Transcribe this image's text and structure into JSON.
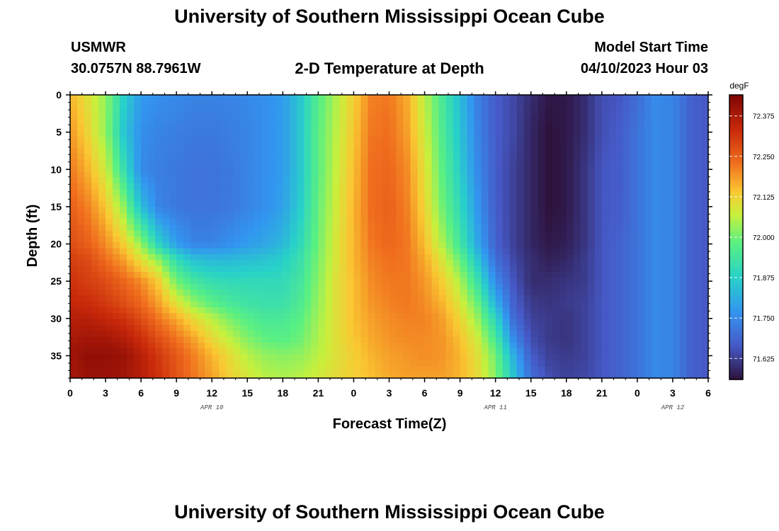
{
  "header": {
    "title": "University of Southern Mississippi Ocean Cube",
    "station": "USMWR",
    "coords": "30.0757N  88.7961W",
    "plot_title": "2-D Temperature at Depth",
    "model_start_label": "Model Start Time",
    "model_start_value": "04/10/2023 Hour 03"
  },
  "footer": {
    "title": "University of Southern Mississippi Ocean Cube"
  },
  "chart_data": {
    "type": "heatmap",
    "title": "2-D Temperature at Depth",
    "xlabel": "Forecast Time(Z)",
    "ylabel": "Depth (ft)",
    "units": "degF",
    "x_range_hours": [
      0,
      54
    ],
    "x_tick_hours": [
      0,
      3,
      6,
      9,
      12,
      15,
      18,
      21,
      24,
      27,
      30,
      33,
      36,
      39,
      42,
      45,
      48,
      51,
      54
    ],
    "x_tick_labels": [
      "0",
      "3",
      "6",
      "9",
      "12",
      "15",
      "18",
      "21",
      "0",
      "3",
      "6",
      "9",
      "12",
      "15",
      "18",
      "21",
      "0",
      "3",
      "6"
    ],
    "date_labels": [
      {
        "text": "APR 10",
        "hour": 12
      },
      {
        "text": "APR 11",
        "hour": 36
      },
      {
        "text": "APR 12",
        "hour": 51
      }
    ],
    "y_range_ft": [
      0,
      38
    ],
    "y_ticks": [
      0,
      5,
      10,
      15,
      20,
      25,
      30,
      35
    ],
    "y_tick_labels": [
      "0",
      "5",
      "10",
      "15",
      "20",
      "25",
      "30",
      "35"
    ],
    "colorbar": {
      "min": 71.56,
      "max": 72.44,
      "ticks": [
        71.625,
        71.75,
        71.875,
        72.0,
        72.125,
        72.25,
        72.375
      ],
      "tick_labels": [
        "71.625",
        "71.750",
        "71.875",
        "72.000",
        "72.125",
        "72.250",
        "72.375"
      ]
    },
    "grid": {
      "x_hours": [
        0,
        1.5,
        3,
        4.5,
        6,
        7.5,
        9,
        10.5,
        12,
        13.5,
        15,
        16.5,
        18,
        19.5,
        21,
        22.5,
        24,
        25.5,
        27,
        28.5,
        30,
        31.5,
        33,
        34.5,
        36,
        37.5,
        39,
        40.5,
        42,
        43.5,
        45,
        46.5,
        48,
        49.5,
        51,
        52.5,
        54
      ],
      "depth_ft": [
        0,
        5,
        10,
        15,
        20,
        22,
        25,
        28,
        30,
        33,
        35,
        38
      ],
      "values": [
        [
          72.16,
          72.1,
          72.03,
          71.88,
          71.78,
          71.76,
          71.75,
          71.74,
          71.74,
          71.74,
          71.75,
          71.76,
          71.78,
          71.86,
          71.97,
          72.05,
          72.13,
          72.21,
          72.22,
          72.17,
          72.06,
          71.95,
          71.84,
          71.73,
          71.67,
          71.64,
          71.6,
          71.57,
          71.57,
          71.6,
          71.65,
          71.66,
          71.7,
          71.75,
          71.74,
          71.68,
          71.66
        ],
        [
          72.19,
          72.12,
          72.03,
          71.86,
          71.76,
          71.74,
          71.73,
          71.72,
          71.72,
          71.73,
          71.74,
          71.76,
          71.78,
          71.86,
          71.98,
          72.06,
          72.14,
          72.22,
          72.23,
          72.18,
          72.08,
          71.96,
          71.85,
          71.74,
          71.67,
          71.64,
          71.59,
          71.56,
          71.57,
          71.6,
          71.65,
          71.67,
          71.71,
          71.75,
          71.74,
          71.68,
          71.66
        ],
        [
          72.22,
          72.16,
          72.08,
          71.92,
          71.75,
          71.73,
          71.72,
          71.71,
          71.71,
          71.72,
          71.74,
          71.76,
          71.78,
          71.86,
          71.98,
          72.07,
          72.15,
          72.23,
          72.24,
          72.2,
          72.1,
          71.98,
          71.87,
          71.75,
          71.67,
          71.63,
          71.59,
          71.56,
          71.57,
          71.61,
          71.66,
          71.67,
          71.71,
          71.75,
          71.74,
          71.68,
          71.66
        ],
        [
          72.25,
          72.21,
          72.14,
          72.03,
          71.84,
          71.74,
          71.72,
          71.71,
          71.71,
          71.72,
          71.74,
          71.76,
          71.79,
          71.87,
          71.99,
          72.08,
          72.16,
          72.23,
          72.25,
          72.21,
          72.12,
          72.0,
          71.9,
          71.77,
          71.67,
          71.63,
          71.59,
          71.56,
          71.57,
          71.61,
          71.66,
          71.67,
          71.71,
          71.75,
          71.74,
          71.68,
          71.66
        ],
        [
          72.28,
          72.25,
          72.2,
          72.13,
          72.03,
          71.88,
          71.78,
          71.74,
          71.74,
          71.76,
          71.78,
          71.8,
          71.83,
          71.9,
          72.0,
          72.09,
          72.16,
          72.22,
          72.24,
          72.22,
          72.15,
          72.05,
          71.94,
          71.8,
          71.68,
          71.63,
          71.59,
          71.57,
          71.58,
          71.61,
          71.66,
          71.68,
          71.71,
          71.75,
          71.74,
          71.68,
          71.66
        ],
        [
          72.3,
          72.28,
          72.23,
          72.18,
          72.1,
          72.02,
          71.9,
          71.84,
          71.83,
          71.83,
          71.84,
          71.85,
          71.87,
          71.92,
          72.01,
          72.09,
          72.16,
          72.21,
          72.23,
          72.22,
          72.17,
          72.09,
          71.99,
          71.85,
          71.7,
          71.64,
          71.6,
          71.58,
          71.59,
          71.62,
          71.66,
          71.68,
          71.71,
          71.75,
          71.74,
          71.68,
          71.66
        ],
        [
          72.32,
          72.3,
          72.28,
          72.24,
          72.2,
          72.13,
          72.0,
          71.94,
          71.91,
          71.9,
          71.9,
          71.9,
          71.9,
          71.94,
          72.02,
          72.1,
          72.15,
          72.2,
          72.22,
          72.22,
          72.19,
          72.13,
          72.05,
          71.92,
          71.75,
          71.66,
          71.6,
          71.6,
          71.61,
          71.62,
          71.66,
          71.68,
          71.71,
          71.75,
          71.74,
          71.68,
          71.66
        ],
        [
          72.34,
          72.33,
          72.31,
          72.28,
          72.24,
          72.18,
          72.1,
          72.03,
          71.98,
          71.95,
          71.93,
          71.92,
          71.92,
          71.96,
          72.03,
          72.1,
          72.15,
          72.19,
          72.21,
          72.22,
          72.2,
          72.16,
          72.09,
          71.99,
          71.82,
          71.68,
          71.62,
          71.61,
          71.62,
          71.63,
          71.66,
          71.68,
          71.71,
          71.75,
          71.74,
          71.68,
          71.66
        ],
        [
          72.36,
          72.36,
          72.34,
          72.32,
          72.28,
          72.22,
          72.17,
          72.11,
          72.06,
          72.01,
          71.97,
          71.95,
          71.95,
          71.98,
          72.04,
          72.1,
          72.15,
          72.18,
          72.2,
          72.21,
          72.21,
          72.18,
          72.12,
          72.03,
          71.89,
          71.7,
          71.63,
          71.62,
          71.61,
          71.63,
          71.66,
          71.68,
          71.71,
          71.75,
          71.74,
          71.68,
          71.66
        ],
        [
          72.38,
          72.39,
          72.39,
          72.37,
          72.33,
          72.28,
          72.23,
          72.18,
          72.12,
          72.07,
          72.02,
          71.99,
          71.98,
          72.0,
          72.05,
          72.1,
          72.14,
          72.17,
          72.19,
          72.2,
          72.2,
          72.19,
          72.15,
          72.08,
          71.96,
          71.76,
          71.65,
          71.62,
          71.61,
          71.63,
          71.66,
          71.68,
          71.71,
          71.75,
          71.74,
          71.68,
          71.66
        ],
        [
          72.39,
          72.41,
          72.41,
          72.4,
          72.36,
          72.31,
          72.26,
          72.21,
          72.16,
          72.11,
          72.06,
          72.03,
          72.02,
          72.03,
          72.06,
          72.1,
          72.13,
          72.16,
          72.18,
          72.19,
          72.2,
          72.19,
          72.16,
          72.1,
          72.0,
          71.82,
          71.67,
          71.63,
          71.62,
          71.63,
          71.66,
          71.68,
          71.71,
          71.75,
          71.74,
          71.68,
          71.66
        ],
        [
          72.38,
          72.4,
          72.4,
          72.39,
          72.36,
          72.32,
          72.27,
          72.22,
          72.18,
          72.13,
          72.09,
          72.06,
          72.05,
          72.06,
          72.08,
          72.11,
          72.13,
          72.15,
          72.17,
          72.18,
          72.18,
          72.18,
          72.16,
          72.11,
          72.02,
          71.86,
          71.7,
          71.65,
          71.63,
          71.64,
          71.66,
          71.68,
          71.71,
          71.75,
          71.74,
          71.68,
          71.66
        ]
      ]
    }
  }
}
